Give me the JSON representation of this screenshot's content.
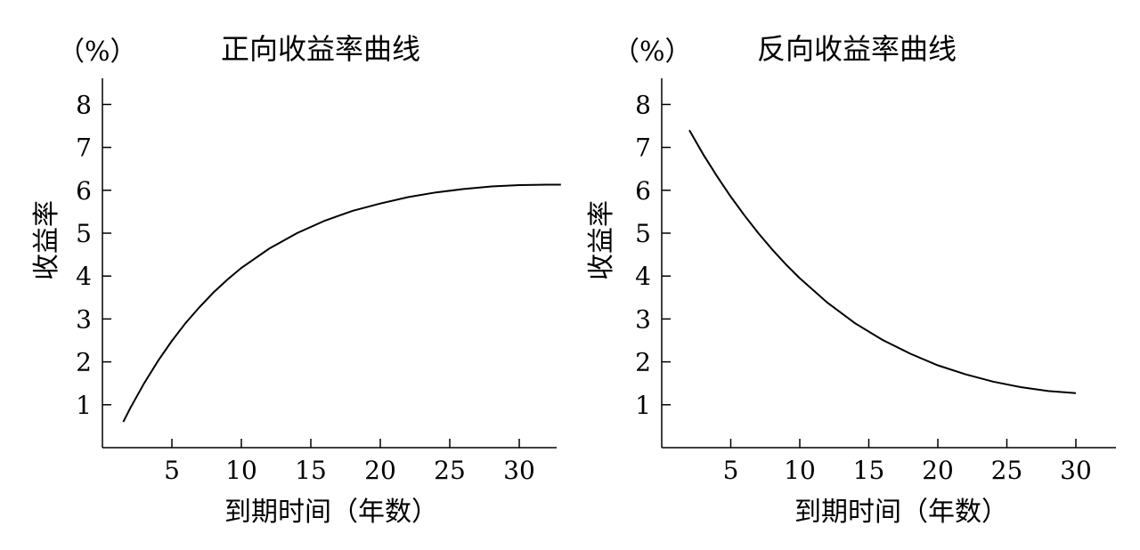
{
  "chart_data": [
    {
      "type": "line",
      "title": "正向收益率曲线",
      "unit_label": "（%）",
      "xlabel": "到期时间（年数）",
      "ylabel": "收益率",
      "xlim": [
        0,
        33
      ],
      "ylim": [
        0,
        8.5
      ],
      "xticks": [
        5,
        10,
        15,
        20,
        25,
        30
      ],
      "yticks": [
        1,
        2,
        3,
        4,
        5,
        6,
        7,
        8
      ],
      "grid": false,
      "legend": "none",
      "series": [
        {
          "color": "#000000",
          "x": [
            1.5,
            2,
            3,
            4,
            5,
            6,
            7,
            8,
            9,
            10,
            12,
            14,
            16,
            18,
            20,
            22,
            24,
            26,
            28,
            30,
            32,
            33
          ],
          "y": [
            0.6,
            0.92,
            1.5,
            2.02,
            2.49,
            2.91,
            3.28,
            3.62,
            3.92,
            4.19,
            4.64,
            5.0,
            5.29,
            5.52,
            5.69,
            5.84,
            5.95,
            6.03,
            6.09,
            6.12,
            6.13,
            6.13
          ]
        }
      ]
    },
    {
      "type": "line",
      "title": "反向收益率曲线",
      "unit_label": "（%）",
      "xlabel": "到期时间（年数）",
      "ylabel": "收益率",
      "xlim": [
        0,
        33
      ],
      "ylim": [
        0,
        8.5
      ],
      "xticks": [
        5,
        10,
        15,
        20,
        25,
        30
      ],
      "yticks": [
        1,
        2,
        3,
        4,
        5,
        6,
        7,
        8
      ],
      "grid": false,
      "legend": "none",
      "series": [
        {
          "color": "#000000",
          "x": [
            2,
            3,
            4,
            5,
            6,
            7,
            8,
            9,
            10,
            12,
            14,
            16,
            18,
            20,
            22,
            24,
            26,
            28,
            30
          ],
          "y": [
            7.4,
            6.84,
            6.33,
            5.85,
            5.41,
            5.0,
            4.62,
            4.27,
            3.95,
            3.38,
            2.9,
            2.51,
            2.19,
            1.92,
            1.71,
            1.54,
            1.41,
            1.32,
            1.27
          ]
        }
      ]
    }
  ]
}
